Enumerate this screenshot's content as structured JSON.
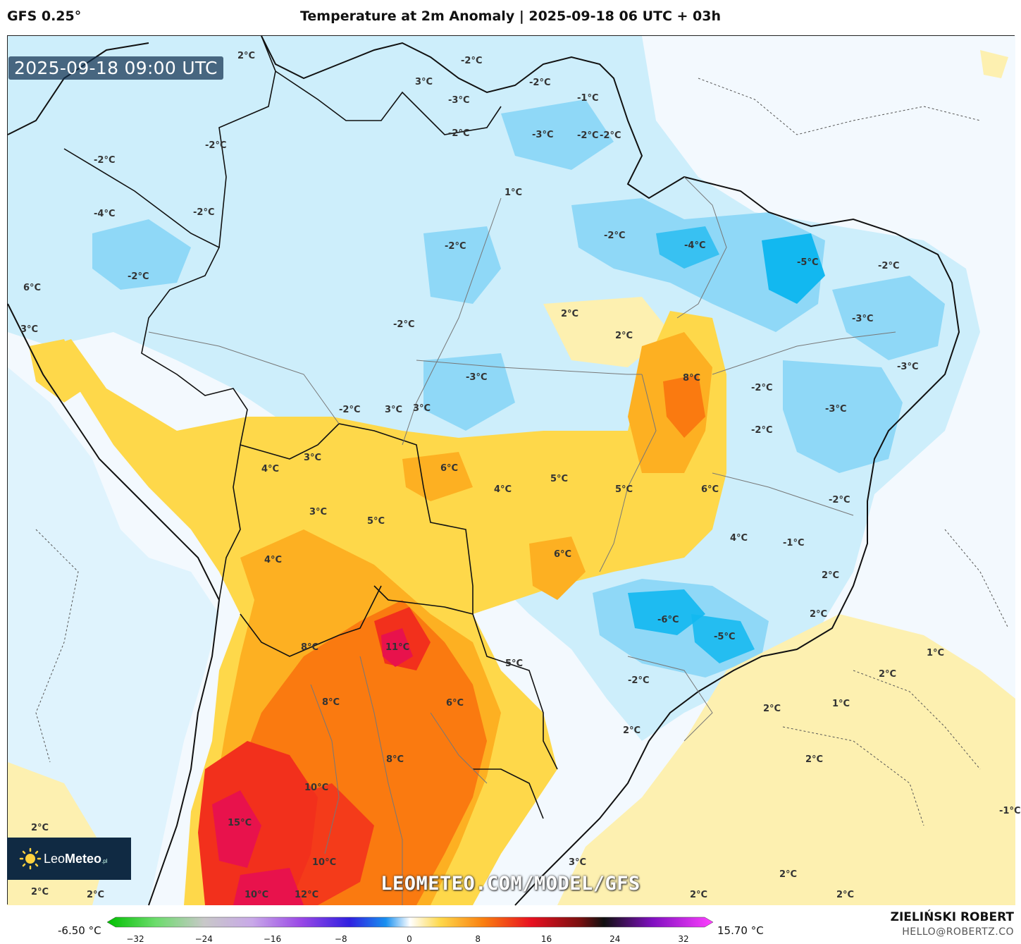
{
  "header": {
    "model": "GFS 0.25°",
    "title": "Temperature at 2m Anomaly | 2025-09-18 06 UTC + 03h"
  },
  "valid_time": "2025-09-18 09:00 UTC",
  "watermark": "LEOMETEO.COM/MODEL/GFS",
  "logo": {
    "brand_light": "Leo",
    "brand_bold": "Meteo",
    "suffix": ".pl"
  },
  "colorbar": {
    "min_label": "-6.50 °C",
    "max_label": "15.70 °C",
    "ticks": [
      "−32",
      "−24",
      "−16",
      "−8",
      "0",
      "8",
      "16",
      "24",
      "32"
    ]
  },
  "credits": {
    "author": "ZIELIŃSKI ROBERT",
    "email": "HELLO@ROBERTZ.CO"
  },
  "colors": {
    "very_cold": "#12b8f0",
    "cold": "#8fd8f7",
    "cool": "#cdeefb",
    "neutral": "#f3f9fe",
    "warm_light": "#fdf0b0",
    "warm": "#fed84a",
    "warmer": "#fdb022",
    "hot": "#fa7a10",
    "very_hot": "#f2301c",
    "extreme": "#e8124c"
  },
  "map_labels": [
    {
      "text": "2°C"
    },
    {
      "text": "3°C"
    },
    {
      "text": "-2°C"
    },
    {
      "text": "-2°C"
    },
    {
      "text": "-2°C"
    },
    {
      "text": "-3°C"
    },
    {
      "text": "-2°C"
    },
    {
      "text": "-1°C"
    },
    {
      "text": "-2°C"
    },
    {
      "text": "-2°C"
    },
    {
      "text": "-2°C"
    },
    {
      "text": "1°C"
    },
    {
      "text": "-3°C"
    },
    {
      "text": "-2°C"
    },
    {
      "text": "-4°C"
    },
    {
      "text": "-5°C"
    },
    {
      "text": "-2°C"
    },
    {
      "text": "3°C"
    },
    {
      "text": "-2°C"
    },
    {
      "text": "2°C"
    },
    {
      "text": "2°C"
    },
    {
      "text": "-4°C"
    },
    {
      "text": "-2°C"
    },
    {
      "text": "-2°C"
    },
    {
      "text": "6°C"
    },
    {
      "text": "-2°C"
    },
    {
      "text": "-3°C"
    },
    {
      "text": "8°C"
    },
    {
      "text": "-2°C"
    },
    {
      "text": "-3°C"
    },
    {
      "text": "-3°C"
    },
    {
      "text": "-2°C"
    },
    {
      "text": "3°C"
    },
    {
      "text": "-2°C"
    },
    {
      "text": "3°C"
    },
    {
      "text": "4°C"
    },
    {
      "text": "3°C"
    },
    {
      "text": "6°C"
    },
    {
      "text": "4°C"
    },
    {
      "text": "5°C"
    },
    {
      "text": "5°C"
    },
    {
      "text": "6°C"
    },
    {
      "text": "-2°C"
    },
    {
      "text": "3°C"
    },
    {
      "text": "5°C"
    },
    {
      "text": "4°C"
    },
    {
      "text": "-1°C"
    },
    {
      "text": "-3°C"
    },
    {
      "text": "4°C"
    },
    {
      "text": "6°C"
    },
    {
      "text": "2°C"
    },
    {
      "text": "-6°C"
    },
    {
      "text": "2°C"
    },
    {
      "text": "-5°C"
    },
    {
      "text": "8°C"
    },
    {
      "text": "11°C"
    },
    {
      "text": "1°C"
    },
    {
      "text": "5°C"
    },
    {
      "text": "2°C"
    },
    {
      "text": "-2°C"
    },
    {
      "text": "8°C"
    },
    {
      "text": "6°C"
    },
    {
      "text": "2°C"
    },
    {
      "text": "1°C"
    },
    {
      "text": "2°C"
    },
    {
      "text": "8°C"
    },
    {
      "text": "2°C"
    },
    {
      "text": "10°C"
    },
    {
      "text": "-1°C"
    },
    {
      "text": "2°C"
    },
    {
      "text": "15°C"
    },
    {
      "text": "3°C"
    },
    {
      "text": "10°C"
    },
    {
      "text": "2°C"
    },
    {
      "text": "2°C"
    },
    {
      "text": "2°C"
    },
    {
      "text": "10°C"
    },
    {
      "text": "12°C"
    },
    {
      "text": "2°C"
    },
    {
      "text": "2°C"
    }
  ]
}
